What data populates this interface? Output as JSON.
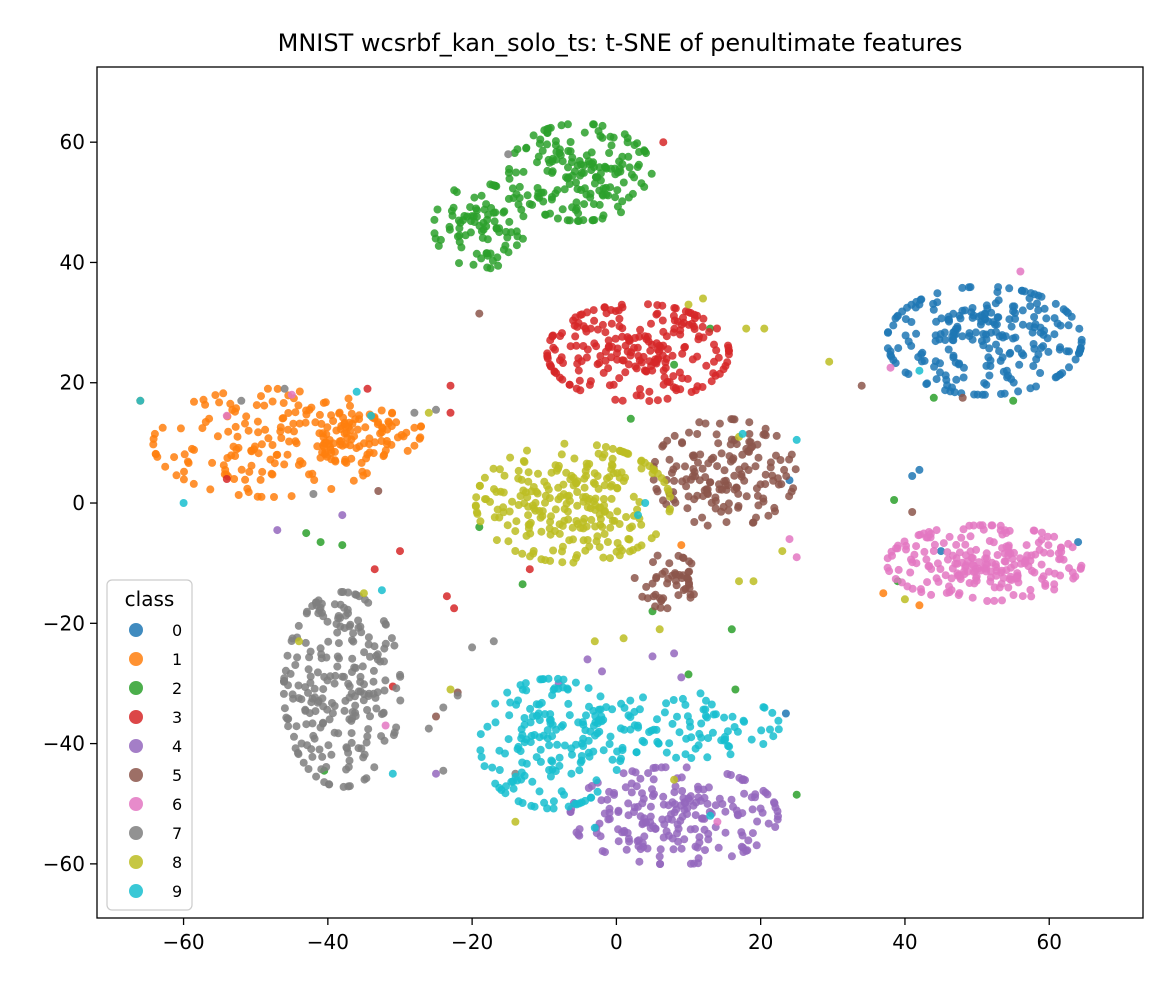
{
  "chart_data": {
    "type": "scatter",
    "title": "MNIST wcsrbf_kan_solo_ts: t-SNE of penultimate features",
    "xlabel": "",
    "ylabel": "",
    "xlim": [
      -72,
      73
    ],
    "ylim": [
      -69,
      72.5
    ],
    "xticks": [
      -60,
      -40,
      -20,
      0,
      20,
      40,
      60
    ],
    "yticks": [
      -60,
      -40,
      -20,
      0,
      20,
      40,
      60
    ],
    "xtick_labels": [
      "−60",
      "−40",
      "−20",
      "0",
      "20",
      "40",
      "60"
    ],
    "ytick_labels": [
      "−60",
      "−40",
      "−20",
      "0",
      "20",
      "40",
      "60"
    ],
    "grid": false,
    "legend": {
      "title": "class",
      "placement": "lower-left",
      "entries": [
        "0",
        "1",
        "2",
        "3",
        "4",
        "5",
        "6",
        "7",
        "8",
        "9"
      ]
    },
    "series": [
      {
        "name": "0",
        "color": "#1f77b4",
        "clusters": [
          {
            "cx": 51,
            "cy": 27,
            "sx": 7.5,
            "sy": 5,
            "n": 240
          }
        ],
        "outliers": [
          [
            41,
            4.5
          ],
          [
            42,
            5.5
          ],
          [
            24,
            3.8
          ],
          [
            64,
            -6.5
          ],
          [
            23.5,
            -35
          ],
          [
            45,
            -8
          ]
        ]
      },
      {
        "name": "1",
        "color": "#ff7f0e",
        "clusters": [
          {
            "cx": -48,
            "cy": 10,
            "sx": 9,
            "sy": 5,
            "n": 170
          },
          {
            "cx": -36,
            "cy": 12,
            "sx": 5,
            "sy": 3,
            "n": 70
          }
        ],
        "outliers": [
          [
            -28,
            12.5
          ],
          [
            -66,
            17
          ],
          [
            9,
            -7
          ],
          [
            37,
            -15
          ],
          [
            42,
            -17
          ],
          [
            -53,
            4
          ]
        ]
      },
      {
        "name": "2",
        "color": "#2ca02c",
        "clusters": [
          {
            "cx": -19,
            "cy": 46,
            "sx": 3.5,
            "sy": 4,
            "n": 90
          },
          {
            "cx": -5,
            "cy": 55,
            "sx": 5.5,
            "sy": 4.5,
            "n": 180
          }
        ],
        "outliers": [
          [
            -43,
            -5
          ],
          [
            -41,
            -6.5
          ],
          [
            -38,
            -7
          ],
          [
            -13,
            -13.5
          ],
          [
            -19,
            -4
          ],
          [
            5,
            -18
          ],
          [
            16,
            -21
          ],
          [
            16.5,
            -31
          ],
          [
            10,
            -28.5
          ],
          [
            -40.5,
            -44.5
          ],
          [
            38.5,
            0.5
          ],
          [
            39,
            -13
          ],
          [
            55,
            17
          ],
          [
            44,
            17.5
          ],
          [
            25,
            -48.5
          ],
          [
            8,
            23
          ],
          [
            2,
            14
          ],
          [
            13,
            29
          ]
        ]
      },
      {
        "name": "3",
        "color": "#d62728",
        "clusters": [
          {
            "cx": 3,
            "cy": 25,
            "sx": 7,
            "sy": 4.5,
            "n": 230
          }
        ],
        "outliers": [
          [
            -34.5,
            19
          ],
          [
            -23,
            19.5
          ],
          [
            -23,
            15
          ],
          [
            -30,
            -8
          ],
          [
            -33.5,
            -11
          ],
          [
            -31,
            -30.5
          ],
          [
            -22.5,
            -17.5
          ],
          [
            -23.5,
            -15.5
          ],
          [
            -54,
            4
          ],
          [
            -12,
            -11
          ],
          [
            6.5,
            60
          ]
        ]
      },
      {
        "name": "4",
        "color": "#9467bd",
        "clusters": [
          {
            "cx": 8,
            "cy": -52,
            "sx": 8,
            "sy": 4.5,
            "n": 210
          }
        ],
        "outliers": [
          [
            -8,
            -30
          ],
          [
            -4,
            -26
          ],
          [
            -2,
            -28
          ],
          [
            8,
            -25
          ],
          [
            9,
            -29
          ],
          [
            5,
            -25.5
          ],
          [
            -38,
            -2
          ],
          [
            -47,
            -4.5
          ],
          [
            -25,
            -45
          ]
        ]
      },
      {
        "name": "5",
        "color": "#8c564b",
        "clusters": [
          {
            "cx": 15,
            "cy": 5,
            "sx": 5.5,
            "sy": 5,
            "n": 160
          },
          {
            "cx": 7,
            "cy": -13,
            "sx": 2.5,
            "sy": 2.5,
            "n": 50
          }
        ],
        "outliers": [
          [
            34,
            19.5
          ],
          [
            -19,
            31.5
          ],
          [
            -33,
            2
          ],
          [
            -25,
            -35.5
          ],
          [
            -22,
            -31.5
          ],
          [
            41,
            -1.5
          ],
          [
            48,
            17.5
          ]
        ]
      },
      {
        "name": "6",
        "color": "#e377c2",
        "clusters": [
          {
            "cx": 51,
            "cy": -10,
            "sx": 7.5,
            "sy": 3.5,
            "n": 220
          }
        ],
        "outliers": [
          [
            24,
            -6
          ],
          [
            25,
            -9
          ],
          [
            56,
            38.5
          ],
          [
            38,
            22.5
          ],
          [
            -54,
            14.5
          ],
          [
            -45,
            18
          ],
          [
            14,
            -53
          ],
          [
            -32,
            -37
          ]
        ]
      },
      {
        "name": "7",
        "color": "#7f7f7f",
        "clusters": [
          {
            "cx": -38,
            "cy": -31,
            "sx": 4.5,
            "sy": 9,
            "n": 230
          }
        ],
        "outliers": [
          [
            -24,
            -34
          ],
          [
            -22,
            -32
          ],
          [
            -24,
            -44.5
          ],
          [
            -26,
            -37.5
          ],
          [
            -28,
            15
          ],
          [
            -25,
            15.5
          ],
          [
            -20,
            -24
          ],
          [
            -17,
            -23
          ],
          [
            -15,
            58
          ],
          [
            -42,
            1.5
          ],
          [
            -46,
            19
          ],
          [
            -14,
            -45
          ],
          [
            -52,
            17
          ]
        ]
      },
      {
        "name": "8",
        "color": "#bcbd22",
        "clusters": [
          {
            "cx": -6,
            "cy": 0,
            "sx": 7.5,
            "sy": 5.5,
            "n": 260
          }
        ],
        "outliers": [
          [
            17,
            -13
          ],
          [
            19,
            -13
          ],
          [
            18,
            29
          ],
          [
            10,
            33
          ],
          [
            12,
            34
          ],
          [
            20.5,
            29
          ],
          [
            -35,
            -15
          ],
          [
            -44,
            -23
          ],
          [
            6,
            -21
          ],
          [
            1,
            -22.5
          ],
          [
            -3,
            -23
          ],
          [
            23,
            -8
          ],
          [
            8,
            -46
          ],
          [
            -14,
            -53
          ],
          [
            29.5,
            23.5
          ],
          [
            40,
            -16
          ],
          [
            -23,
            -31
          ],
          [
            -26,
            15
          ],
          [
            17,
            11
          ]
        ]
      },
      {
        "name": "9",
        "color": "#17becf",
        "clusters": [
          {
            "cx": -9,
            "cy": -40,
            "sx": 5.5,
            "sy": 6,
            "n": 170
          },
          {
            "cx": 10,
            "cy": -37,
            "sx": 7,
            "sy": 3,
            "n": 90
          }
        ],
        "outliers": [
          [
            25,
            10.5
          ],
          [
            17.5,
            11.5
          ],
          [
            -36,
            18.5
          ],
          [
            -34,
            14.5
          ],
          [
            -60,
            0
          ],
          [
            -66,
            17
          ],
          [
            4,
            0
          ],
          [
            3,
            -2
          ],
          [
            -32.5,
            -14.5
          ],
          [
            -31,
            -45
          ],
          [
            13,
            -52
          ],
          [
            -3,
            -54
          ],
          [
            42,
            22
          ]
        ]
      }
    ]
  }
}
